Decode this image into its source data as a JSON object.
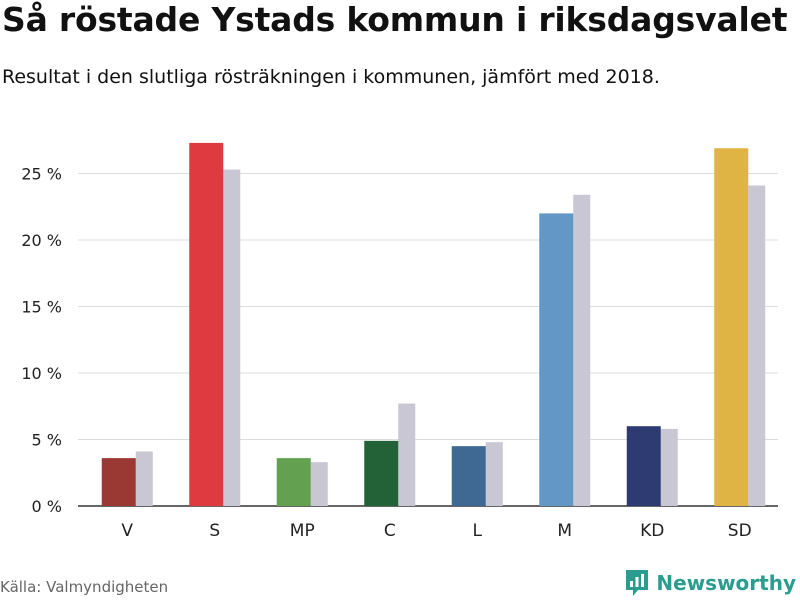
{
  "header": {
    "title": "Så röstade Ystads kommun i riksdagsvalet",
    "subtitle": "Resultat i den slutliga rösträkningen i kommunen, jämfört med 2018."
  },
  "footer": {
    "source": "Källa: Valmyndigheten",
    "brand": "Newsworthy",
    "brand_icon": "bar-chart-icon"
  },
  "chart_data": {
    "type": "bar",
    "categories": [
      "V",
      "S",
      "MP",
      "C",
      "L",
      "M",
      "KD",
      "SD"
    ],
    "series": [
      {
        "values": [
          3.6,
          27.3,
          3.6,
          4.9,
          4.5,
          22.0,
          6.0,
          26.9
        ]
      },
      {
        "values": [
          4.1,
          25.3,
          3.3,
          7.7,
          4.8,
          23.4,
          5.8,
          24.1
        ]
      }
    ],
    "colors_current": [
      "#9a3934",
      "#df3a3f",
      "#63a050",
      "#236137",
      "#3f6893",
      "#6297c6",
      "#2e3a72",
      "#e0b345"
    ],
    "color_previous": "#c8c7d3",
    "ylim": [
      0,
      27.5
    ],
    "yticks": [
      0,
      5,
      10,
      15,
      20,
      25
    ],
    "ytick_labels": [
      "0 %",
      "5 %",
      "10 %",
      "15 %",
      "20 %",
      "25 %"
    ],
    "grid": true
  }
}
